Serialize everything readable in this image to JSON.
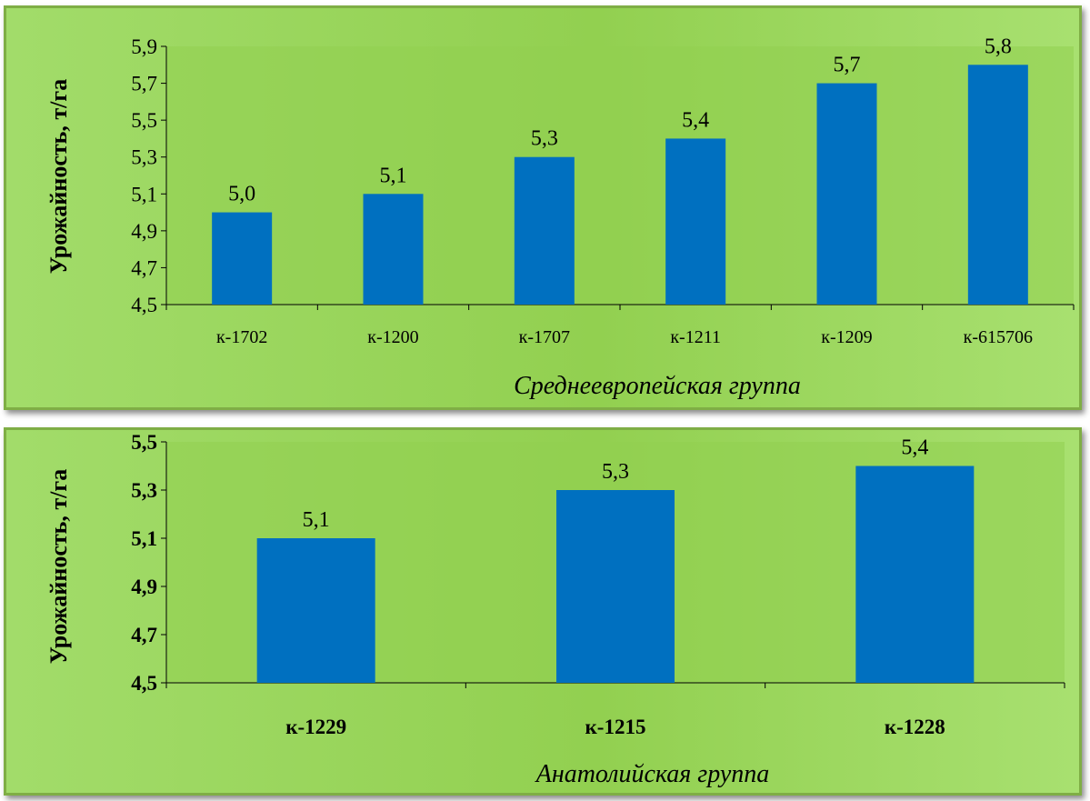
{
  "colors": {
    "bar": "#0070c0",
    "plot_area": "#92d050",
    "panel_border": "#7fae45"
  },
  "chart_data": [
    {
      "type": "bar",
      "categories": [
        "к-1702",
        "к-1200",
        "к-1707",
        "к-1211",
        "к-1209",
        "к-615706"
      ],
      "values": [
        5.0,
        5.1,
        5.3,
        5.4,
        5.7,
        5.8
      ],
      "value_labels": [
        "5,0",
        "5,1",
        "5,3",
        "5,4",
        "5,7",
        "5,8"
      ],
      "ylabel": "Урожайность, т/га",
      "caption": "Среднеевропейская группа",
      "ylim": [
        4.5,
        5.9
      ],
      "yticks": [
        4.5,
        4.7,
        4.9,
        5.1,
        5.3,
        5.5,
        5.7,
        5.9
      ],
      "ytick_labels": [
        "4,5",
        "4,7",
        "4,9",
        "5,1",
        "5,3",
        "5,5",
        "5,7",
        "5,9"
      ],
      "grid": false,
      "bold_ticks": false
    },
    {
      "type": "bar",
      "categories": [
        "к-1229",
        "к-1215",
        "к-1228"
      ],
      "values": [
        5.1,
        5.3,
        5.4
      ],
      "value_labels": [
        "5,1",
        "5,3",
        "5,4"
      ],
      "ylabel": "Урожайность, т/га",
      "caption": "Анатолийская группа",
      "ylim": [
        4.5,
        5.5
      ],
      "yticks": [
        4.5,
        4.7,
        4.9,
        5.1,
        5.3,
        5.5
      ],
      "ytick_labels": [
        "4,5",
        "4,7",
        "4,9",
        "5,1",
        "5,3",
        "5,5"
      ],
      "grid": false,
      "bold_ticks": true
    }
  ]
}
